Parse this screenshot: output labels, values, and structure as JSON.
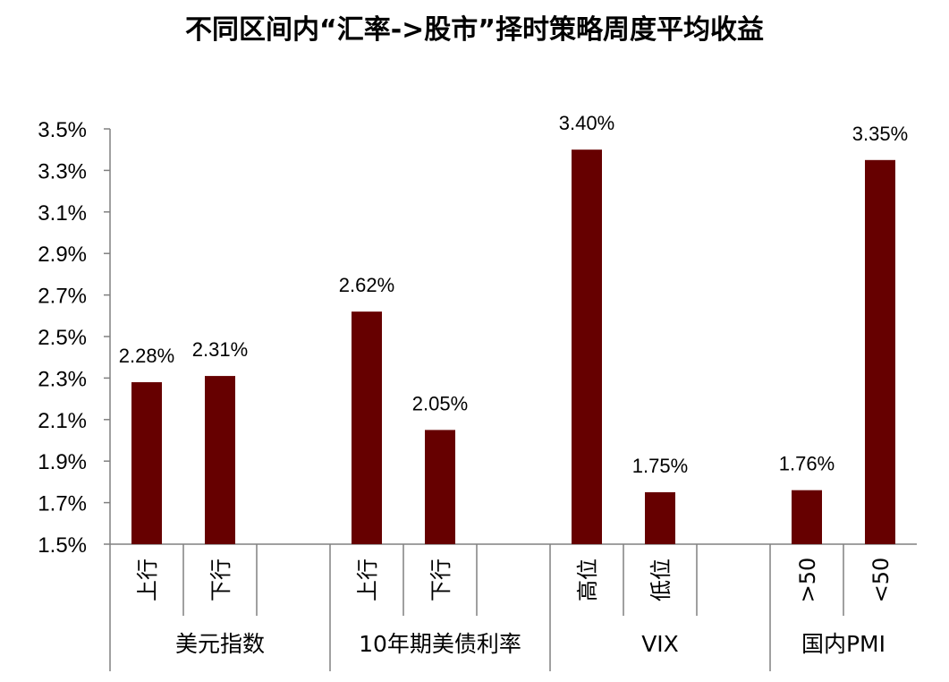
{
  "chart_data": {
    "type": "bar",
    "title": "不同区间内“汇率->股市”择时策略周度平均收益",
    "ylim": [
      1.5,
      3.5
    ],
    "yticks": [
      "1.5%",
      "1.7%",
      "1.9%",
      "2.1%",
      "2.3%",
      "2.5%",
      "2.7%",
      "2.9%",
      "3.1%",
      "3.3%",
      "3.5%"
    ],
    "groups": [
      {
        "name": "美元指数",
        "categories": [
          "上行",
          "下行"
        ],
        "values": [
          2.28,
          2.31
        ],
        "labels": [
          "2.28%",
          "2.31%"
        ]
      },
      {
        "name": "10年期美债利率",
        "categories": [
          "上行",
          "下行"
        ],
        "values": [
          2.62,
          2.05
        ],
        "labels": [
          "2.62%",
          "2.05%"
        ]
      },
      {
        "name": "VIX",
        "categories": [
          "高位",
          "低位"
        ],
        "values": [
          3.4,
          1.75
        ],
        "labels": [
          "3.40%",
          "1.75%"
        ]
      },
      {
        "name": "国内PMI",
        "categories": [
          ">50",
          "<50"
        ],
        "values": [
          1.76,
          3.35
        ],
        "labels": [
          "1.76%",
          "3.35%"
        ]
      }
    ],
    "bar_color": "#660000",
    "grid": false,
    "legend": "none"
  }
}
